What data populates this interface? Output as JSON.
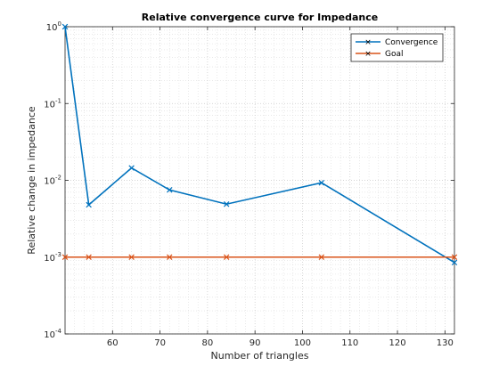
{
  "chart_data": {
    "type": "line",
    "title": "Relative convergence curve for Impedance",
    "xlabel": "Number of triangles",
    "ylabel": "Relative change in impedance",
    "xlim": [
      50,
      132
    ],
    "ylim": [
      0.0001,
      1
    ],
    "yscale": "log",
    "grid": true,
    "legend_position": "top-right",
    "xticks": [
      60,
      70,
      80,
      90,
      100,
      110,
      120,
      130
    ],
    "yticks": [
      {
        "value": 0.0001,
        "base": "10",
        "exp": "-4"
      },
      {
        "value": 0.001,
        "base": "10",
        "exp": "-3"
      },
      {
        "value": 0.01,
        "base": "10",
        "exp": "-2"
      },
      {
        "value": 0.1,
        "base": "10",
        "exp": "-1"
      },
      {
        "value": 1,
        "base": "10",
        "exp": "0"
      }
    ],
    "x": [
      50,
      55,
      64,
      72,
      84,
      104,
      132
    ],
    "series": [
      {
        "name": "Convergence",
        "color": "#0072BD",
        "values": [
          1.0,
          0.0048,
          0.0145,
          0.0075,
          0.0049,
          0.0093,
          0.00085
        ]
      },
      {
        "name": "Goal",
        "color": "#D95319",
        "values": [
          0.001,
          0.001,
          0.001,
          0.001,
          0.001,
          0.001,
          0.001
        ]
      }
    ]
  }
}
